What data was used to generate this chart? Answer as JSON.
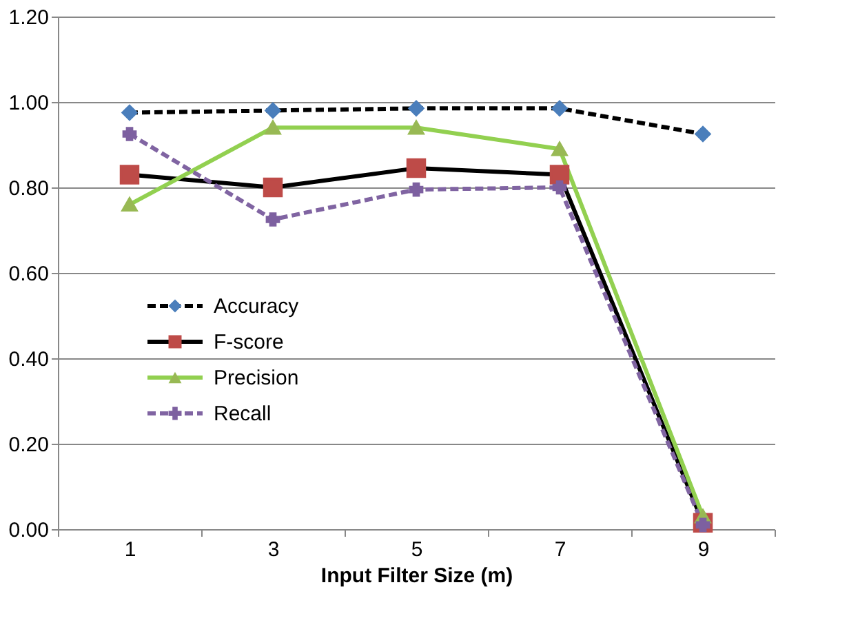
{
  "chart_data": {
    "type": "line",
    "xlabel": "Input Filter Size (m)",
    "categories": [
      "1",
      "3",
      "5",
      "7",
      "9"
    ],
    "ylim": [
      0,
      1.2
    ],
    "yticks": [
      {
        "value": 0,
        "label": "0.00"
      },
      {
        "value": 0.2,
        "label": "0.20"
      },
      {
        "value": 0.4,
        "label": "0.40"
      },
      {
        "value": 0.6,
        "label": "0.60"
      },
      {
        "value": 0.8,
        "label": "0.80"
      },
      {
        "value": 1.0,
        "label": "1.00"
      },
      {
        "value": 1.2,
        "label": "1.20"
      }
    ],
    "grid": "y",
    "legend": "bottom left",
    "series": [
      {
        "name": "Accuracy",
        "color": "#000000",
        "colors": [
          "#4a7ebb",
          "#4a7ebb",
          "#4a7ebb",
          "#4a7ebb",
          "#4a7ebb"
        ],
        "marker": "diamond",
        "line_style": "dashed",
        "values": [
          0.975,
          0.98,
          0.985,
          0.985,
          0.925
        ]
      },
      {
        "name": "F-score",
        "color": "#000000",
        "colors": [
          "#be4b48",
          "#be4b48",
          "#be4b48",
          "#be4b48",
          "#be4b48"
        ],
        "marker": "square",
        "line_style": "solid",
        "values": [
          0.83,
          0.8,
          0.845,
          0.83,
          0.015
        ]
      },
      {
        "name": "Precision",
        "color": "#92d050",
        "colors": [
          "#98b954",
          "#98b954",
          "#98b954",
          "#98b954",
          "#98b954"
        ],
        "marker": "triangle",
        "line_style": "solid",
        "values": [
          0.76,
          0.94,
          0.94,
          0.89,
          0.03
        ]
      },
      {
        "name": "Recall",
        "color": "#8064a2",
        "colors": [
          "#7d60a0",
          "#7d60a0",
          "#7d60a0",
          "#7d60a0",
          "#7d60a0"
        ],
        "marker": "cross",
        "line_style": "dashed",
        "values": [
          0.925,
          0.725,
          0.795,
          0.8,
          0.01
        ]
      }
    ]
  }
}
